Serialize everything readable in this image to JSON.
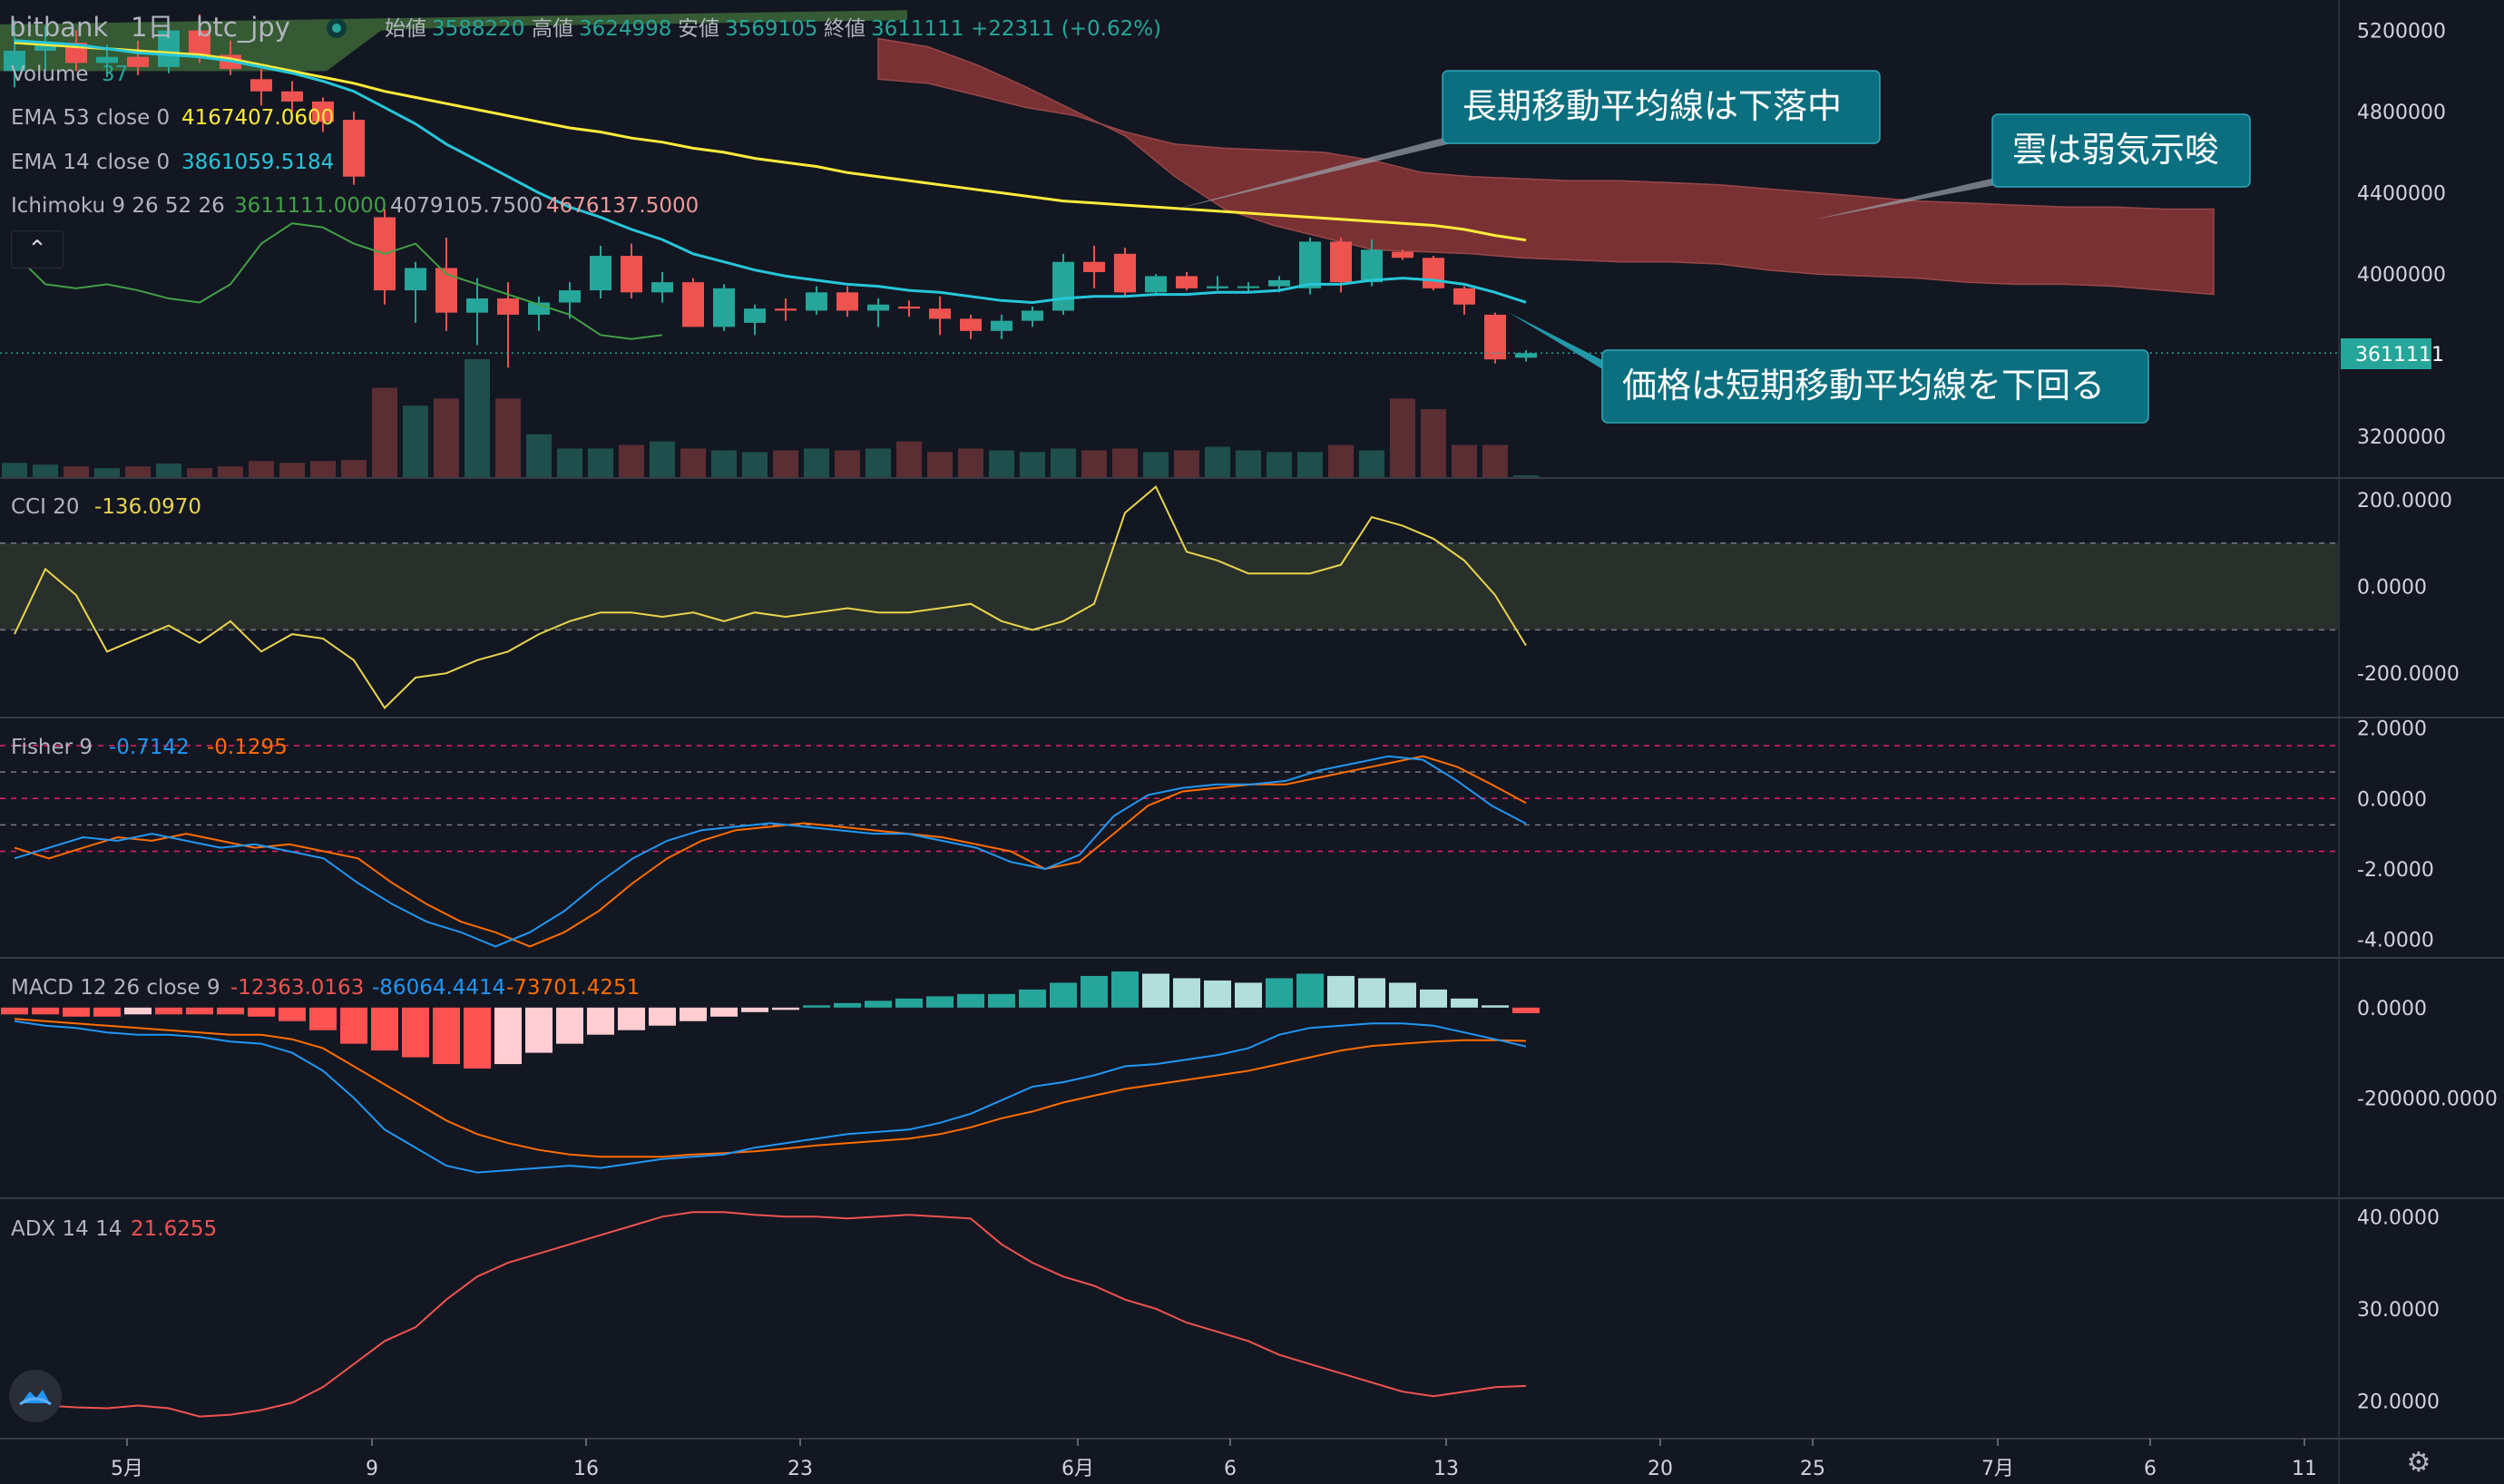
{
  "header": {
    "exchange": "bitbank",
    "interval": "1日",
    "symbol": "btc_jpy",
    "open_label": "始値",
    "open": "3588220",
    "high_label": "高値",
    "high": "3624998",
    "low_label": "安値",
    "low": "3569105",
    "close_label": "終値",
    "close": "3611111",
    "change": "+22311 (+0.62%)"
  },
  "legend": {
    "volume": "Volume",
    "volume_value": "37",
    "ema53": "EMA 53 close 0",
    "ema53_value": "4167407.0600",
    "ema14": "EMA 14 close 0",
    "ema14_value": "3861059.5184",
    "ichimoku": "Ichimoku 9 26 52 26",
    "ichimoku_v1": "3611111.0000",
    "ichimoku_v2": "4079105.7500",
    "ichimoku_v3": "4676137.5000",
    "cci": "CCI 20",
    "cci_value": "-136.0970",
    "fisher": "Fisher 9",
    "fisher_v1": "-0.7142",
    "fisher_v2": "-0.1295",
    "macd": "MACD 12 26 close 9",
    "macd_v1": "-12363.0163",
    "macd_v2": "-86064.4414",
    "macd_v3": "-73701.4251",
    "adx": "ADX 14 14",
    "adx_value": "21.6255"
  },
  "annotations": [
    {
      "text": "長期移動平均線は下落中"
    },
    {
      "text": "雲は弱気示唆"
    },
    {
      "text": "価格は短期移動平均線を下回る"
    }
  ],
  "price_tag": "3611111",
  "colors": {
    "up": "#26a69a",
    "down": "#ef5350",
    "ema53": "#ffeb3b",
    "ema14": "#26c6da",
    "chikou": "#43a047",
    "cloud_bear": "#8d3636",
    "cloud_bull": "#3e6b3a",
    "cci": "#e8d44d",
    "fisher1": "#2196f3",
    "fisher2": "#ff6d00",
    "adx": "#ef5350"
  },
  "chart_data": [
    {
      "type": "candlestick",
      "title": "btc_jpy 1日",
      "x_ticks": [
        "5月",
        "9",
        "16",
        "23",
        "6月",
        "6",
        "13",
        "20",
        "25",
        "7月",
        "6",
        "11"
      ],
      "y_ticks": [
        "5200000",
        "4800000",
        "4400000",
        "4000000",
        "3200000"
      ],
      "ylim": [
        3000000,
        5350000
      ],
      "candles": [
        [
          5000000,
          5250000,
          4920000,
          5100000
        ],
        [
          5100000,
          5220000,
          5000000,
          5140000
        ],
        [
          5140000,
          5200000,
          5000000,
          5040000
        ],
        [
          5040000,
          5130000,
          4970000,
          5070000
        ],
        [
          5070000,
          5150000,
          4980000,
          5020000
        ],
        [
          5020000,
          5220000,
          4990000,
          5200000
        ],
        [
          5200000,
          5280000,
          5040000,
          5080000
        ],
        [
          5080000,
          5150000,
          4980000,
          5010000
        ],
        [
          4960000,
          5010000,
          4830000,
          4900000
        ],
        [
          4900000,
          4950000,
          4800000,
          4850000
        ],
        [
          4850000,
          4870000,
          4700000,
          4750000
        ],
        [
          4760000,
          4800000,
          4440000,
          4480000
        ],
        [
          4280000,
          4320000,
          3850000,
          3920000
        ],
        [
          3920000,
          4060000,
          3760000,
          4030000
        ],
        [
          4030000,
          4180000,
          3720000,
          3810000
        ],
        [
          3810000,
          3980000,
          3650000,
          3880000
        ],
        [
          3880000,
          3960000,
          3540000,
          3800000
        ],
        [
          3800000,
          3890000,
          3720000,
          3860000
        ],
        [
          3860000,
          3960000,
          3780000,
          3920000
        ],
        [
          3920000,
          4140000,
          3880000,
          4090000
        ],
        [
          4090000,
          4150000,
          3880000,
          3910000
        ],
        [
          3910000,
          4010000,
          3860000,
          3960000
        ],
        [
          3960000,
          3980000,
          3740000,
          3740000
        ],
        [
          3740000,
          3950000,
          3720000,
          3930000
        ],
        [
          3760000,
          3850000,
          3700000,
          3830000
        ],
        [
          3830000,
          3880000,
          3770000,
          3820000
        ],
        [
          3820000,
          3940000,
          3800000,
          3910000
        ],
        [
          3910000,
          3940000,
          3790000,
          3820000
        ],
        [
          3820000,
          3880000,
          3740000,
          3850000
        ],
        [
          3840000,
          3870000,
          3790000,
          3830000
        ],
        [
          3830000,
          3890000,
          3700000,
          3780000
        ],
        [
          3780000,
          3800000,
          3680000,
          3720000
        ],
        [
          3720000,
          3800000,
          3680000,
          3770000
        ],
        [
          3770000,
          3840000,
          3740000,
          3820000
        ],
        [
          3820000,
          4100000,
          3800000,
          4060000
        ],
        [
          4060000,
          4140000,
          3930000,
          4010000
        ],
        [
          4100000,
          4130000,
          3890000,
          3910000
        ],
        [
          3910000,
          4000000,
          3900000,
          3990000
        ],
        [
          3990000,
          4010000,
          3920000,
          3930000
        ],
        [
          3930000,
          3990000,
          3920000,
          3940000
        ],
        [
          3940000,
          3960000,
          3910000,
          3940000
        ],
        [
          3940000,
          3990000,
          3910000,
          3970000
        ],
        [
          3930000,
          4180000,
          3900000,
          4160000
        ],
        [
          4160000,
          4180000,
          3910000,
          3960000
        ],
        [
          3960000,
          4170000,
          3940000,
          4120000
        ],
        [
          4110000,
          4120000,
          4070000,
          4080000
        ],
        [
          4080000,
          4090000,
          3920000,
          3930000
        ],
        [
          3930000,
          3940000,
          3800000,
          3850000
        ],
        [
          3800000,
          3810000,
          3560000,
          3580000
        ],
        [
          3588220,
          3624998,
          3569105,
          3611111
        ]
      ],
      "ema53": [
        5140000,
        5130000,
        5120000,
        5110000,
        5100000,
        5090000,
        5080000,
        5060000,
        5030000,
        5000000,
        4970000,
        4940000,
        4900000,
        4870000,
        4840000,
        4810000,
        4780000,
        4750000,
        4720000,
        4700000,
        4670000,
        4650000,
        4620000,
        4600000,
        4570000,
        4550000,
        4530000,
        4500000,
        4480000,
        4460000,
        4440000,
        4420000,
        4400000,
        4380000,
        4360000,
        4350000,
        4340000,
        4330000,
        4320000,
        4310000,
        4300000,
        4290000,
        4280000,
        4270000,
        4260000,
        4250000,
        4240000,
        4220000,
        4190000,
        4167407
      ],
      "ema14": [
        5150000,
        5140000,
        5130000,
        5110000,
        5090000,
        5080000,
        5070000,
        5050000,
        5020000,
        4990000,
        4950000,
        4900000,
        4820000,
        4740000,
        4640000,
        4560000,
        4480000,
        4400000,
        4330000,
        4280000,
        4220000,
        4170000,
        4100000,
        4060000,
        4020000,
        3990000,
        3970000,
        3950000,
        3940000,
        3920000,
        3910000,
        3890000,
        3870000,
        3860000,
        3880000,
        3890000,
        3890000,
        3900000,
        3900000,
        3910000,
        3910000,
        3920000,
        3950000,
        3950000,
        3970000,
        3980000,
        3970000,
        3950000,
        3910000,
        3861059
      ],
      "volume": [
        40,
        35,
        30,
        25,
        30,
        38,
        25,
        30,
        45,
        40,
        45,
        48,
        250,
        200,
        220,
        330,
        220,
        120,
        80,
        80,
        90,
        100,
        80,
        75,
        70,
        75,
        80,
        75,
        80,
        100,
        70,
        80,
        75,
        70,
        80,
        75,
        80,
        70,
        75,
        85,
        75,
        70,
        70,
        90,
        75,
        220,
        190,
        90,
        90,
        5
      ]
    },
    {
      "type": "line",
      "title": "CCI 20",
      "y_ticks": [
        "200.0000",
        "0.0000",
        "-200.0000"
      ],
      "ylim": [
        -300,
        250
      ],
      "values": [
        -110,
        40,
        -20,
        -150,
        -120,
        -90,
        -130,
        -80,
        -150,
        -110,
        -120,
        -170,
        -280,
        -210,
        -200,
        -170,
        -150,
        -110,
        -80,
        -60,
        -60,
        -70,
        -60,
        -80,
        -60,
        -70,
        -60,
        -50,
        -60,
        -60,
        -50,
        -40,
        -80,
        -100,
        -80,
        -40,
        170,
        230,
        80,
        60,
        30,
        30,
        30,
        50,
        160,
        140,
        110,
        60,
        -20,
        -136
      ]
    },
    {
      "type": "line",
      "title": "Fisher 9",
      "y_ticks": [
        "2.0000",
        "0.0000",
        "-2.0000",
        "-4.0000"
      ],
      "ylim": [
        -4.5,
        2.3
      ],
      "series": [
        {
          "name": "-0.7142",
          "values": [
            -1.7,
            -1.4,
            -1.1,
            -1.2,
            -1.0,
            -1.2,
            -1.4,
            -1.3,
            -1.5,
            -1.7,
            -2.4,
            -3.0,
            -3.5,
            -3.8,
            -4.2,
            -3.8,
            -3.2,
            -2.4,
            -1.7,
            -1.2,
            -0.9,
            -0.8,
            -0.7,
            -0.8,
            -0.9,
            -1.0,
            -1.0,
            -1.2,
            -1.4,
            -1.8,
            -2.0,
            -1.6,
            -0.5,
            0.1,
            0.3,
            0.4,
            0.4,
            0.5,
            0.8,
            1.0,
            1.2,
            1.1,
            0.5,
            -0.2,
            -0.7142
          ]
        },
        {
          "name": "-0.1295",
          "values": [
            -1.4,
            -1.7,
            -1.4,
            -1.1,
            -1.2,
            -1.0,
            -1.2,
            -1.4,
            -1.3,
            -1.5,
            -1.7,
            -2.4,
            -3.0,
            -3.5,
            -3.8,
            -4.2,
            -3.8,
            -3.2,
            -2.4,
            -1.7,
            -1.2,
            -0.9,
            -0.8,
            -0.7,
            -0.8,
            -0.9,
            -1.0,
            -1.1,
            -1.3,
            -1.5,
            -2.0,
            -1.8,
            -1.0,
            -0.2,
            0.2,
            0.3,
            0.4,
            0.4,
            0.6,
            0.8,
            1.0,
            1.2,
            0.9,
            0.4,
            -0.1295
          ]
        }
      ]
    },
    {
      "type": "bar",
      "title": "MACD 12 26 close 9",
      "y_ticks": [
        "0.0000",
        "-200000.0000"
      ],
      "ylim": [
        -420000,
        110000
      ],
      "histogram": [
        -15000,
        -15000,
        -20000,
        -20000,
        -15000,
        -15000,
        -15000,
        -15000,
        -20000,
        -30000,
        -50000,
        -80000,
        -95000,
        -110000,
        -125000,
        -135000,
        -125000,
        -100000,
        -80000,
        -60000,
        -50000,
        -40000,
        -30000,
        -20000,
        -10000,
        -5000,
        5000,
        10000,
        15000,
        20000,
        25000,
        30000,
        30000,
        40000,
        55000,
        70000,
        80000,
        75000,
        65000,
        60000,
        55000,
        65000,
        75000,
        70000,
        65000,
        55000,
        40000,
        20000,
        5000,
        -12363
      ],
      "macd": [
        -30000,
        -40000,
        -45000,
        -55000,
        -60000,
        -60000,
        -65000,
        -75000,
        -80000,
        -100000,
        -140000,
        -200000,
        -270000,
        -310000,
        -350000,
        -365000,
        -360000,
        -355000,
        -350000,
        -355000,
        -345000,
        -335000,
        -330000,
        -325000,
        -310000,
        -300000,
        -290000,
        -280000,
        -275000,
        -270000,
        -255000,
        -235000,
        -205000,
        -175000,
        -165000,
        -150000,
        -130000,
        -125000,
        -115000,
        -105000,
        -90000,
        -60000,
        -45000,
        -40000,
        -35000,
        -35000,
        -40000,
        -55000,
        -70000,
        -86064
      ],
      "signal": [
        -25000,
        -30000,
        -35000,
        -40000,
        -45000,
        -50000,
        -55000,
        -60000,
        -60000,
        -70000,
        -90000,
        -130000,
        -170000,
        -210000,
        -250000,
        -280000,
        -300000,
        -315000,
        -325000,
        -330000,
        -330000,
        -330000,
        -325000,
        -322000,
        -318000,
        -312000,
        -305000,
        -300000,
        -295000,
        -290000,
        -280000,
        -265000,
        -245000,
        -230000,
        -210000,
        -195000,
        -180000,
        -170000,
        -160000,
        -150000,
        -140000,
        -125000,
        -110000,
        -95000,
        -85000,
        -80000,
        -75000,
        -72000,
        -72000,
        -73701
      ]
    },
    {
      "type": "line",
      "title": "ADX 14 14",
      "y_ticks": [
        "40.0000",
        "30.0000",
        "20.0000"
      ],
      "ylim": [
        16,
        42
      ],
      "values": [
        20,
        19.5,
        19.3,
        19.2,
        19.5,
        19.2,
        18.3,
        18.5,
        19,
        19.8,
        21.5,
        24,
        26.5,
        28,
        31,
        33.5,
        35,
        36,
        37,
        38,
        39,
        40,
        40.5,
        40.5,
        40.2,
        40,
        40,
        39.8,
        40,
        40.2,
        40,
        39.8,
        37,
        35,
        33.5,
        32.5,
        31,
        30,
        28.5,
        27.5,
        26.5,
        25,
        24,
        23,
        22,
        21,
        20.5,
        21,
        21.5,
        21.6255
      ]
    }
  ]
}
